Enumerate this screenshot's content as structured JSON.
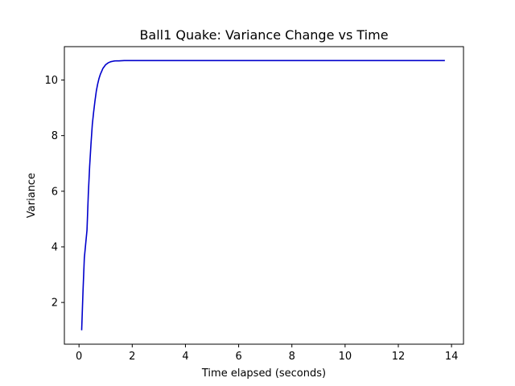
{
  "chart_data": {
    "type": "line",
    "title": "Ball1 Quake: Variance Change vs Time",
    "xlabel": "Time elapsed (seconds)",
    "ylabel": "Variance",
    "xlim": [
      -0.55,
      14.45
    ],
    "ylim": [
      0.5,
      11.2
    ],
    "xticks": [
      0,
      2,
      4,
      6,
      8,
      10,
      12,
      14
    ],
    "yticks": [
      2,
      4,
      6,
      8,
      10
    ],
    "grid": false,
    "line_color": "#0000cc",
    "series": [
      {
        "x": [
          0.1,
          0.15,
          0.2,
          0.25,
          0.3,
          0.35,
          0.4,
          0.45,
          0.5,
          0.55,
          0.6,
          0.65,
          0.7,
          0.75,
          0.8,
          0.9,
          1.0,
          1.1,
          1.2,
          1.3,
          1.4,
          1.5,
          1.7,
          2.0,
          2.5,
          3.0,
          5.0,
          8.0,
          11.0,
          13.75
        ],
        "y": [
          1.0,
          2.4,
          3.6,
          4.1,
          4.6,
          5.9,
          6.9,
          7.7,
          8.4,
          8.85,
          9.25,
          9.6,
          9.85,
          10.05,
          10.2,
          10.42,
          10.55,
          10.62,
          10.66,
          10.68,
          10.69,
          10.69,
          10.7,
          10.7,
          10.7,
          10.7,
          10.7,
          10.7,
          10.7,
          10.7
        ]
      }
    ]
  }
}
